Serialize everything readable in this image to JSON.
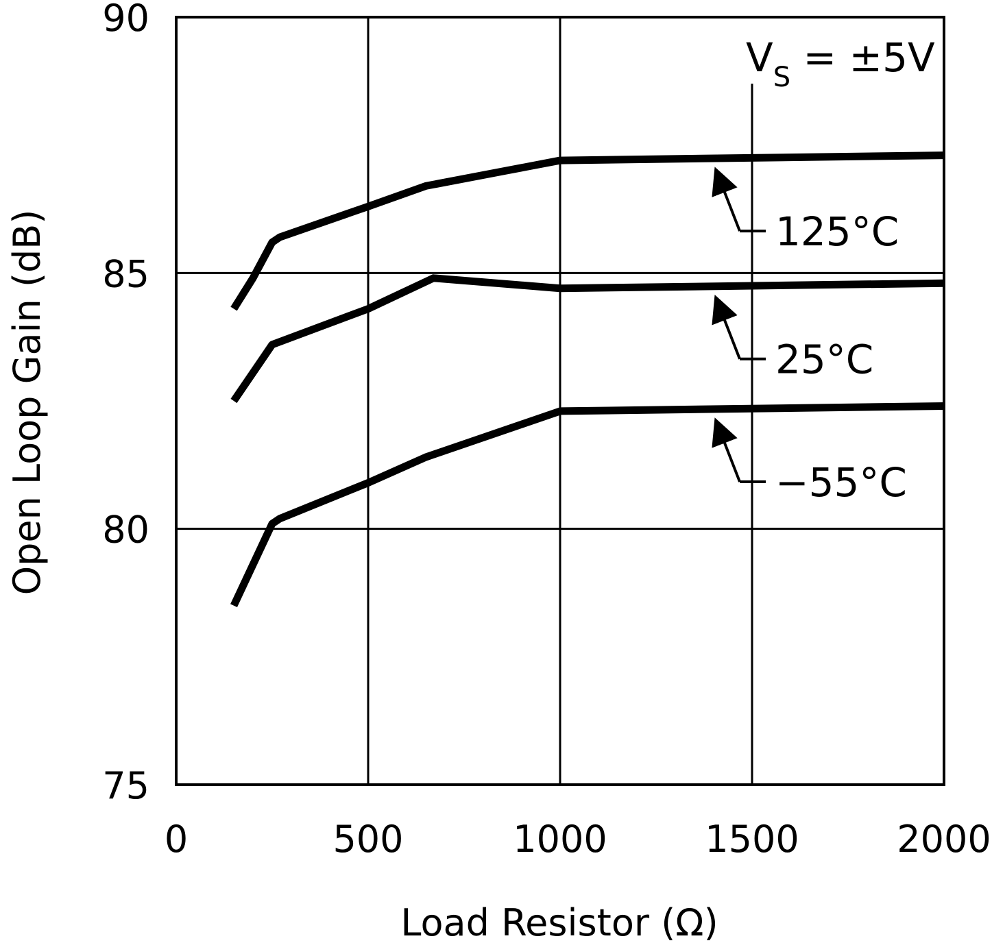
{
  "chart_data": {
    "type": "line",
    "title": "",
    "xlabel": "Load Resistor (Ω)",
    "ylabel": "Open Loop Gain (dB)",
    "xlim": [
      0,
      2000
    ],
    "ylim": [
      75,
      90
    ],
    "xticks": [
      "0",
      "500",
      "1000",
      "1500",
      "2000"
    ],
    "yticks": [
      "75",
      "80",
      "85",
      "90"
    ],
    "grid": true,
    "condition": {
      "main": "V",
      "sub": "S",
      "rest": " = ±5V"
    },
    "series": [
      {
        "name": "125°C",
        "x": [
          150,
          200,
          250,
          270,
          500,
          650,
          1000,
          2000
        ],
        "y": [
          84.3,
          84.9,
          85.6,
          85.7,
          86.3,
          86.7,
          87.2,
          87.3
        ]
      },
      {
        "name": "25°C",
        "x": [
          150,
          250,
          500,
          670,
          1000,
          2000
        ],
        "y": [
          82.5,
          83.6,
          84.3,
          84.9,
          84.7,
          84.8
        ]
      },
      {
        "name": "-55°C",
        "x": [
          150,
          250,
          270,
          500,
          650,
          1000,
          2000
        ],
        "y": [
          78.5,
          80.1,
          80.2,
          80.9,
          81.4,
          82.3,
          82.4
        ]
      }
    ],
    "annotations": [
      {
        "label": "125°C",
        "series": "125°C",
        "x_arrow": 1400
      },
      {
        "label": "25°C",
        "series": "25°C",
        "x_arrow": 1400
      },
      {
        "label": "−55°C",
        "series": "-55°C",
        "x_arrow": 1400
      }
    ]
  }
}
